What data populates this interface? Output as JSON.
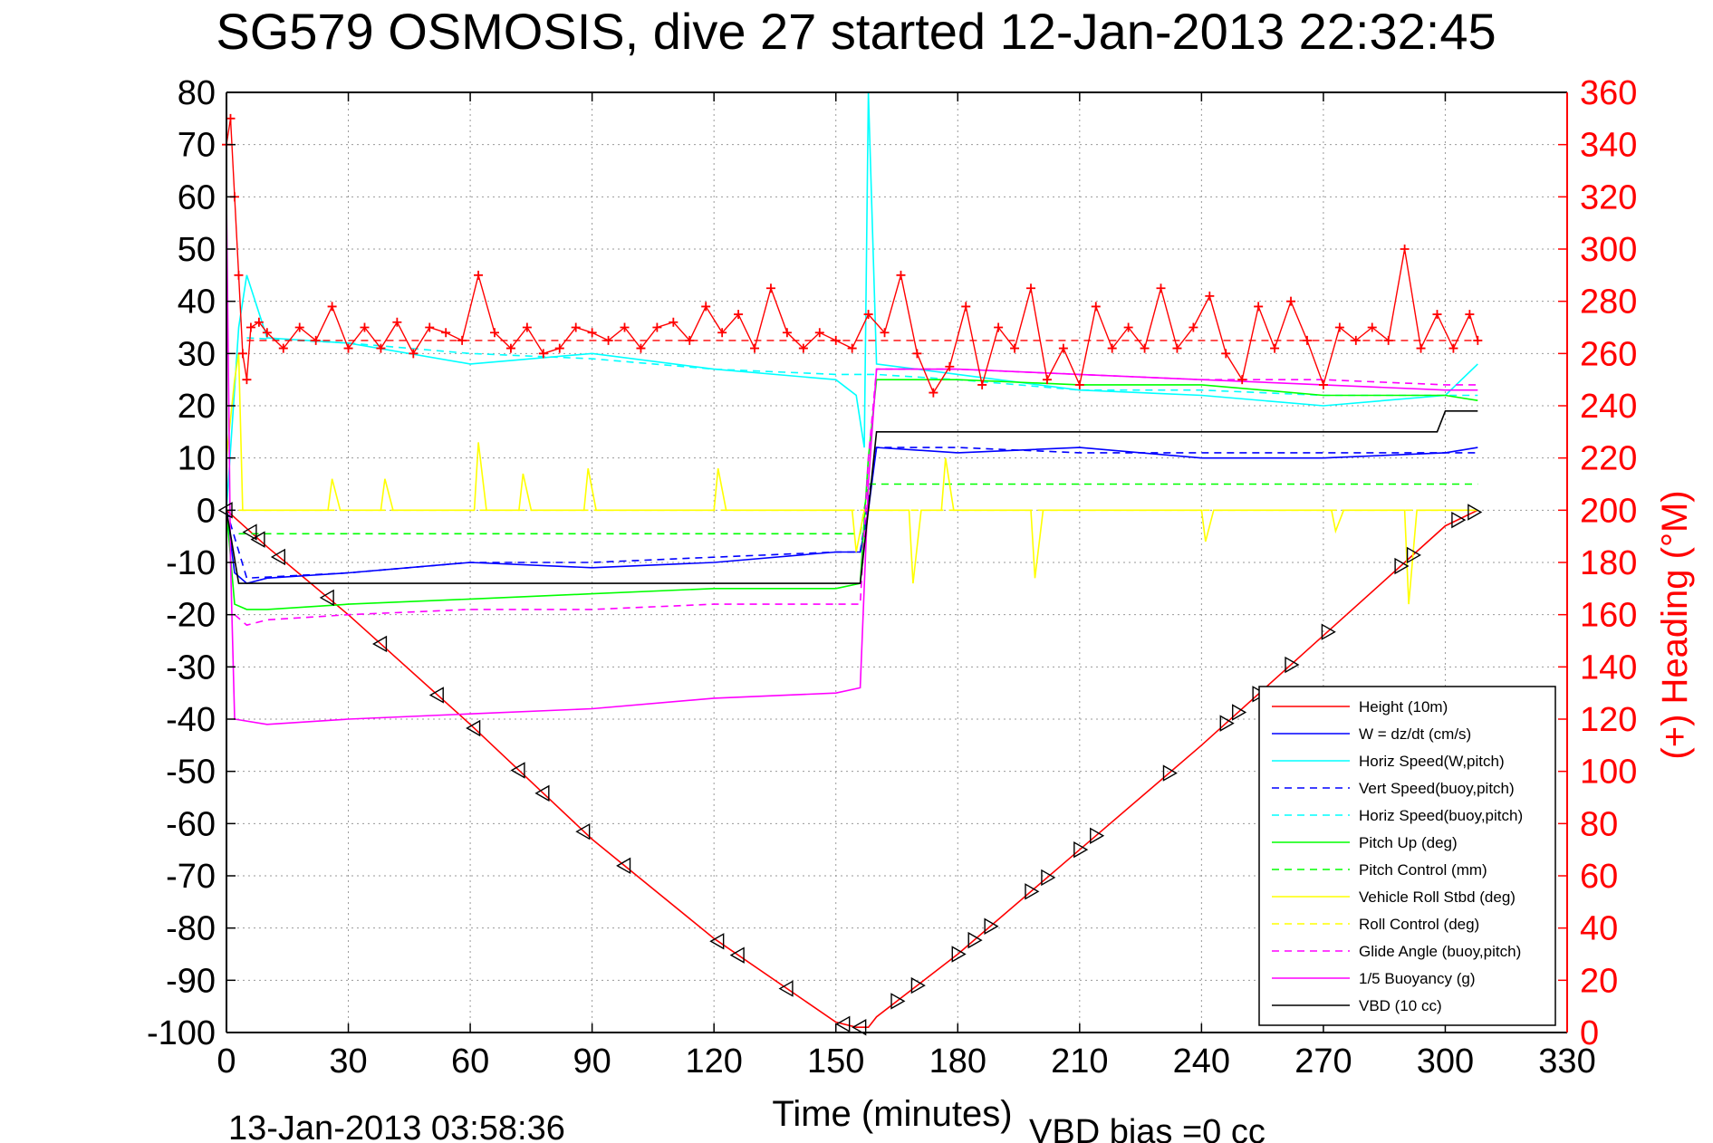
{
  "chart_data": {
    "type": "line",
    "title": "SG579 OSMOSIS, dive 27 started 12-Jan-2013 22:32:45",
    "xlabel": "Time (minutes)",
    "ylabel": "",
    "y2label": "(+) Heading (°M)",
    "xlim": [
      0,
      330
    ],
    "ylim": [
      -100,
      80
    ],
    "y2lim": [
      0,
      360
    ],
    "xticks": [
      "0",
      "30",
      "60",
      "90",
      "120",
      "150",
      "180",
      "210",
      "240",
      "270",
      "300",
      "330"
    ],
    "yticks": [
      "80",
      "70",
      "60",
      "50",
      "40",
      "30",
      "20",
      "10",
      "0",
      "-10",
      "-20",
      "-30",
      "-40",
      "-50",
      "-60",
      "-70",
      "-80",
      "-90",
      "-100"
    ],
    "y2ticks": [
      "360",
      "340",
      "320",
      "300",
      "280",
      "260",
      "240",
      "220",
      "200",
      "180",
      "160",
      "140",
      "120",
      "100",
      "80",
      "60",
      "40",
      "20",
      "0"
    ],
    "grid": true,
    "legend_position": "bottom-right",
    "annotations": {
      "end_time": "13-Jan-2013 03:58:36",
      "vbd_bias": "VBD bias =0 cc"
    },
    "series": [
      {
        "name": "Height (10m)",
        "color": "#ff0000",
        "style": "solid",
        "x": [
          0,
          10,
          30,
          60,
          90,
          120,
          150,
          155,
          158,
          160,
          180,
          210,
          240,
          270,
          300,
          308
        ],
        "y": [
          0,
          -7,
          -20,
          -41,
          -63,
          -82,
          -98,
          -99,
          -99,
          -97,
          -85,
          -65,
          -45,
          -24,
          -3,
          0
        ]
      },
      {
        "name": "W = dz/dt (cm/s)",
        "color": "#0000ff",
        "style": "solid",
        "x": [
          0,
          2,
          5,
          10,
          30,
          60,
          90,
          120,
          150,
          156,
          158,
          160,
          180,
          210,
          240,
          270,
          300,
          308
        ],
        "y": [
          0,
          -12,
          -14,
          -13,
          -12,
          -10,
          -11,
          -10,
          -8,
          -8,
          0,
          12,
          11,
          12,
          10,
          10,
          11,
          12
        ]
      },
      {
        "name": "Horiz Speed(W,pitch)",
        "color": "#00ffff",
        "style": "solid",
        "x": [
          0,
          3,
          5,
          10,
          30,
          60,
          90,
          120,
          150,
          155,
          157,
          158,
          160,
          180,
          210,
          240,
          270,
          300,
          308
        ],
        "y": [
          0,
          35,
          45,
          33,
          32,
          28,
          30,
          27,
          25,
          22,
          12,
          80,
          28,
          26,
          23,
          22,
          20,
          22,
          28
        ]
      },
      {
        "name": "Vert Speed(buoy,pitch)",
        "color": "#0000ff",
        "style": "dashed",
        "x": [
          0,
          5,
          30,
          60,
          90,
          120,
          150,
          156,
          160,
          180,
          210,
          240,
          270,
          300,
          308
        ],
        "y": [
          0,
          -13,
          -12,
          -10,
          -10,
          -9,
          -8,
          -8,
          12,
          12,
          11,
          11,
          11,
          11,
          11
        ]
      },
      {
        "name": "Horiz Speed(buoy,pitch)",
        "color": "#00ffff",
        "style": "dashed",
        "x": [
          5,
          30,
          60,
          90,
          120,
          150,
          156,
          160,
          180,
          210,
          240,
          270,
          300,
          308
        ],
        "y": [
          33,
          32,
          30,
          29,
          27,
          26,
          26,
          26,
          25,
          23,
          23,
          22,
          22,
          22
        ]
      },
      {
        "name": "Pitch Up (deg)",
        "color": "#00ff00",
        "style": "solid",
        "x": [
          0,
          2,
          5,
          10,
          30,
          60,
          90,
          120,
          150,
          156,
          158,
          160,
          180,
          210,
          240,
          270,
          300,
          308
        ],
        "y": [
          0,
          -18,
          -19,
          -19,
          -18,
          -17,
          -16,
          -15,
          -15,
          -14,
          10,
          25,
          25,
          24,
          24,
          22,
          22,
          21
        ]
      },
      {
        "name": "Pitch Control (mm)",
        "color": "#00ff00",
        "style": "dashed",
        "x": [
          3,
          30,
          60,
          90,
          120,
          150,
          156,
          158,
          160,
          180,
          210,
          240,
          270,
          300,
          308
        ],
        "y": [
          -4.5,
          -4.5,
          -4.5,
          -4.5,
          -4.5,
          -4.5,
          -4.5,
          5,
          5,
          5,
          5,
          5,
          5,
          5,
          5
        ]
      },
      {
        "name": "Vehicle Roll Stbd (deg)",
        "color": "#ffff00",
        "style": "solid",
        "x": [
          0,
          2,
          3,
          4,
          8,
          25,
          26,
          28,
          38,
          39,
          41,
          61,
          62,
          64,
          72,
          73,
          75,
          88,
          89,
          91,
          120,
          121,
          123,
          154,
          155,
          157,
          160,
          168,
          169,
          171,
          176,
          177,
          179,
          198,
          199,
          201,
          240,
          241,
          243,
          272,
          273,
          275,
          290,
          291,
          293,
          305,
          308
        ],
        "y": [
          10,
          25,
          30,
          0,
          0,
          0,
          6,
          0,
          0,
          6,
          0,
          0,
          13,
          0,
          0,
          7,
          0,
          0,
          8,
          0,
          0,
          8,
          0,
          0,
          -8,
          0,
          0,
          0,
          -14,
          0,
          0,
          10,
          0,
          0,
          -13,
          0,
          0,
          -6,
          0,
          0,
          -4,
          0,
          0,
          -18,
          0,
          0,
          0
        ]
      },
      {
        "name": "Roll Control (deg)",
        "color": "#ffff00",
        "style": "dashed",
        "x": [
          3,
          30,
          60,
          90,
          120,
          150,
          180,
          210,
          240,
          270,
          300,
          308
        ],
        "y": [
          0,
          0,
          0,
          0,
          0,
          0,
          0,
          0,
          0,
          0,
          0,
          0
        ]
      },
      {
        "name": "Glide Angle (buoy,pitch)",
        "color": "#ff00ff",
        "style": "dashed",
        "x": [
          2,
          5,
          10,
          30,
          60,
          90,
          120,
          150,
          156,
          158,
          160,
          180,
          210,
          240,
          270,
          300,
          308
        ],
        "y": [
          -20,
          -22,
          -21,
          -20,
          -19,
          -19,
          -18,
          -18,
          -18,
          10,
          27,
          27,
          26,
          25,
          25,
          24,
          24
        ]
      },
      {
        "name": "1/5 Buoyancy (g)",
        "color": "#ff00ff",
        "style": "solid",
        "x": [
          0,
          1,
          2,
          10,
          30,
          60,
          90,
          120,
          150,
          156,
          158,
          160,
          180,
          210,
          240,
          270,
          300,
          308
        ],
        "y": [
          60,
          -10,
          -40,
          -41,
          -40,
          -39,
          -38,
          -36,
          -35,
          -34,
          5,
          27,
          27,
          26,
          25,
          24,
          23,
          23
        ]
      },
      {
        "name": "VBD (10 cc)",
        "color": "#000000",
        "style": "solid",
        "x": [
          0,
          3,
          10,
          30,
          60,
          90,
          120,
          150,
          156,
          158,
          160,
          180,
          210,
          240,
          270,
          298,
          300,
          308
        ],
        "y": [
          0,
          -14,
          -14,
          -14,
          -14,
          -14,
          -14,
          -14,
          -14,
          0,
          15,
          15,
          15,
          15,
          15,
          15,
          19,
          19
        ]
      }
    ],
    "heading": {
      "name": "(+) Heading",
      "color": "#ff0000",
      "axis": "right",
      "target": 265,
      "x": [
        0,
        1,
        2,
        3,
        4,
        5,
        6,
        8,
        10,
        14,
        18,
        22,
        26,
        30,
        34,
        38,
        42,
        46,
        50,
        54,
        58,
        62,
        66,
        70,
        74,
        78,
        82,
        86,
        90,
        94,
        98,
        102,
        106,
        110,
        114,
        118,
        122,
        126,
        130,
        134,
        138,
        142,
        146,
        150,
        154,
        158,
        162,
        166,
        170,
        174,
        178,
        182,
        186,
        190,
        194,
        198,
        202,
        206,
        210,
        214,
        218,
        222,
        226,
        230,
        234,
        238,
        242,
        246,
        250,
        254,
        258,
        262,
        266,
        270,
        274,
        278,
        282,
        286,
        290,
        294,
        298,
        302,
        306,
        308
      ],
      "y": [
        340,
        350,
        320,
        290,
        260,
        250,
        270,
        272,
        268,
        262,
        270,
        265,
        278,
        262,
        270,
        262,
        272,
        260,
        270,
        268,
        265,
        290,
        268,
        262,
        270,
        260,
        262,
        270,
        268,
        265,
        270,
        262,
        270,
        272,
        265,
        278,
        268,
        275,
        262,
        285,
        268,
        262,
        268,
        265,
        262,
        275,
        268,
        290,
        260,
        245,
        255,
        278,
        248,
        270,
        262,
        285,
        250,
        262,
        248,
        278,
        262,
        270,
        262,
        285,
        262,
        270,
        282,
        260,
        250,
        278,
        262,
        280,
        265,
        248,
        270,
        265,
        270,
        265,
        300,
        262,
        275,
        262,
        275,
        265
      ]
    }
  }
}
